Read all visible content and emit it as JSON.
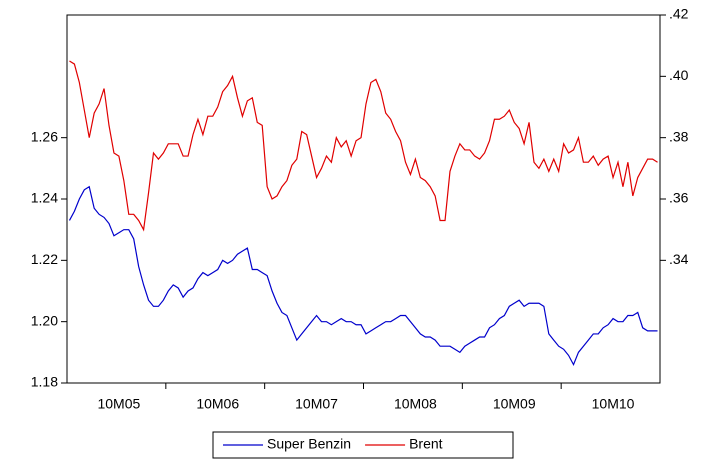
{
  "chart_data": {
    "type": "line",
    "categories": [
      null,
      null,
      null,
      null,
      null,
      null,
      null,
      null,
      null,
      null,
      "10M05",
      null,
      null,
      null,
      null,
      null,
      null,
      null,
      null,
      null,
      null,
      null,
      null,
      null,
      null,
      null,
      null,
      null,
      null,
      null,
      "10M06",
      null,
      null,
      null,
      null,
      null,
      null,
      null,
      null,
      null,
      null,
      null,
      null,
      null,
      null,
      null,
      null,
      null,
      null,
      null,
      "10M07",
      null,
      null,
      null,
      null,
      null,
      null,
      null,
      null,
      null,
      null,
      null,
      null,
      null,
      null,
      null,
      null,
      null,
      null,
      null,
      "10M08",
      null,
      null,
      null,
      null,
      null,
      null,
      null,
      null,
      null,
      null,
      null,
      null,
      null,
      null,
      null,
      null,
      null,
      null,
      null,
      "10M09",
      null,
      null,
      null,
      null,
      null,
      null,
      null,
      null,
      null,
      null,
      null,
      null,
      null,
      null,
      null,
      null,
      null,
      null,
      null,
      "10M10",
      null,
      null,
      null,
      null,
      null,
      null,
      null,
      null,
      null
    ],
    "series": [
      {
        "name": "Super Benzin",
        "color": "#0000cc",
        "axis": "y",
        "values": [
          1.233,
          1.236,
          1.24,
          1.243,
          1.244,
          1.237,
          1.235,
          1.234,
          1.232,
          1.228,
          1.229,
          1.23,
          1.23,
          1.227,
          1.218,
          1.212,
          1.207,
          1.205,
          1.205,
          1.207,
          1.21,
          1.212,
          1.211,
          1.208,
          1.21,
          1.211,
          1.214,
          1.216,
          1.215,
          1.216,
          1.217,
          1.22,
          1.219,
          1.22,
          1.222,
          1.223,
          1.224,
          1.217,
          1.217,
          1.216,
          1.215,
          1.21,
          1.206,
          1.203,
          1.202,
          1.198,
          1.194,
          1.196,
          1.198,
          1.2,
          1.202,
          1.2,
          1.2,
          1.199,
          1.2,
          1.201,
          1.2,
          1.2,
          1.199,
          1.199,
          1.196,
          1.197,
          1.198,
          1.199,
          1.2,
          1.2,
          1.201,
          1.202,
          1.202,
          1.2,
          1.198,
          1.196,
          1.195,
          1.195,
          1.194,
          1.192,
          1.192,
          1.192,
          1.191,
          1.19,
          1.192,
          1.193,
          1.194,
          1.195,
          1.195,
          1.198,
          1.199,
          1.201,
          1.202,
          1.205,
          1.206,
          1.207,
          1.205,
          1.206,
          1.206,
          1.206,
          1.205,
          1.196,
          1.194,
          1.192,
          1.191,
          1.189,
          1.186,
          1.19,
          1.192,
          1.194,
          1.196,
          1.196,
          1.198,
          1.199,
          1.201,
          1.2,
          1.2,
          1.202,
          1.202,
          1.203,
          1.198,
          1.197,
          1.197,
          1.197
        ]
      },
      {
        "name": "Brent",
        "color": "#e00000",
        "axis": "y2",
        "values": [
          0.405,
          0.404,
          0.398,
          0.389,
          0.38,
          0.388,
          0.391,
          0.396,
          0.384,
          0.375,
          0.374,
          0.366,
          0.355,
          0.355,
          0.353,
          0.35,
          0.362,
          0.375,
          0.373,
          0.375,
          0.378,
          0.378,
          0.378,
          0.374,
          0.374,
          0.381,
          0.386,
          0.381,
          0.387,
          0.387,
          0.39,
          0.395,
          0.397,
          0.4,
          0.393,
          0.387,
          0.392,
          0.393,
          0.385,
          0.384,
          0.364,
          0.36,
          0.361,
          0.364,
          0.366,
          0.371,
          0.373,
          0.382,
          0.381,
          0.374,
          0.367,
          0.37,
          0.374,
          0.372,
          0.38,
          0.377,
          0.379,
          0.374,
          0.379,
          0.38,
          0.391,
          0.398,
          0.399,
          0.395,
          0.388,
          0.386,
          0.382,
          0.379,
          0.372,
          0.368,
          0.373,
          0.367,
          0.366,
          0.364,
          0.361,
          0.353,
          0.353,
          0.369,
          0.374,
          0.378,
          0.376,
          0.376,
          0.374,
          0.373,
          0.375,
          0.379,
          0.386,
          0.386,
          0.387,
          0.389,
          0.385,
          0.383,
          0.378,
          0.385,
          0.372,
          0.37,
          0.373,
          0.369,
          0.373,
          0.369,
          0.378,
          0.375,
          0.376,
          0.38,
          0.372,
          0.372,
          0.374,
          0.371,
          0.373,
          0.374,
          0.367,
          0.372,
          0.364,
          0.372,
          0.361,
          0.367,
          0.37,
          0.373,
          0.373,
          0.372
        ]
      }
    ],
    "ylim": [
      1.18,
      1.3
    ],
    "yticks": [
      1.18,
      {
        "value": 1.2,
        "label": "1.20"
      },
      1.22,
      1.24,
      1.26
    ],
    "y2lim": [
      0.3,
      0.42
    ],
    "y2ticks": [
      {
        "value": 0.34,
        "label": ".34"
      },
      {
        "value": 0.36,
        "label": ".36"
      },
      {
        "value": 0.38,
        "label": ".38"
      },
      {
        "value": 0.4,
        "label": ".40"
      },
      {
        "value": 0.42,
        "label": ".42"
      }
    ],
    "legend": "bottom"
  }
}
